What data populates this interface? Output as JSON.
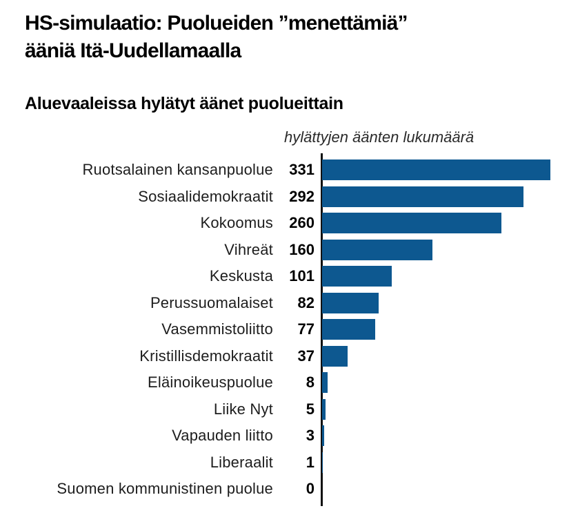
{
  "page": {
    "title_line1": "HS-simulaatio: Puolueiden ”menettämiä”",
    "title_line2": "ääniä Itä-Uudellamaalla",
    "subtitle": "Aluevaaleissa hylätyt äänet puolueittain",
    "axis_note": "hylättyjen äänten lukumäärä"
  },
  "colors": {
    "bar": "#0d5890",
    "axis": "#111111",
    "label_text": "#1d1d1d",
    "note_text": "#2a2a2a"
  },
  "chart_data": {
    "type": "bar",
    "orientation": "horizontal",
    "title": "Aluevaaleissa hylätyt äänet puolueittain",
    "xlabel": "hylättyjen äänten lukumäärä",
    "categories": [
      "Ruotsalainen kansanpuolue",
      "Sosiaalidemokraatit",
      "Kokoomus",
      "Vihreät",
      "Keskusta",
      "Perussuomalaiset",
      "Vasemmistoliitto",
      "Kristillisdemokraatit",
      "Eläinoikeuspuolue",
      "Liike Nyt",
      "Vapauden liitto",
      "Liberaalit",
      "Suomen kommunistinen puolue"
    ],
    "values": [
      331,
      292,
      260,
      160,
      101,
      82,
      77,
      37,
      8,
      5,
      3,
      1,
      0
    ],
    "xlim": [
      0,
      340
    ],
    "grid": false,
    "legend": "none",
    "value_labels": "numeric, left of axis",
    "bar_order": "descending"
  }
}
